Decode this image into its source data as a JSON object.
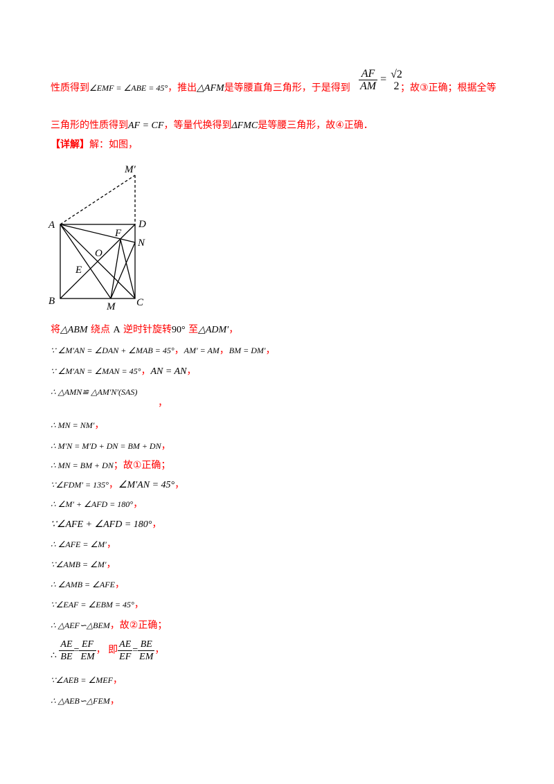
{
  "intro": {
    "line1": {
      "t1": "性质得到",
      "m1": "∠EMF = ∠ABE = 45°",
      "t2": "，推出",
      "m2": "△AFM",
      "t3": "是等腰直角三角形，于是得到",
      "frac_num": "AF",
      "frac_den": "AM",
      "eq": "=",
      "frac2_num": "√2",
      "frac2_den": "2",
      "t4": "；故③正确；根据全等"
    },
    "line2": {
      "t1": "三角形的性质得到",
      "m1": "AF = CF",
      "t2": "，等量代换得到",
      "m2": "ΔFMC",
      "t3": "是等腰三角形，故④正确．"
    }
  },
  "detail_heading": {
    "bracket": "【详解】",
    "text": "解：如图，"
  },
  "diagram": {
    "labels": {
      "A": "A",
      "B": "B",
      "C": "C",
      "D": "D",
      "M": "M",
      "N": "N",
      "F": "F",
      "O": "O",
      "E": "E",
      "Mp": "M′"
    }
  },
  "steps": [
    {
      "parts": [
        {
          "t": "将",
          "c": "red"
        },
        {
          "t": "△ABM",
          "c": "m"
        },
        {
          "t": " 绕点 ",
          "c": "red"
        },
        {
          "t": "A",
          "c": "mu"
        },
        {
          "t": " 逆时针旋转",
          "c": "red"
        },
        {
          "t": "90°",
          "c": "mu"
        },
        {
          "t": " 至",
          "c": "red"
        },
        {
          "t": "△ADM′",
          "c": "m"
        },
        {
          "t": "，",
          "c": "red"
        }
      ]
    },
    {
      "parts": [
        {
          "t": "∵ ∠M′AN = ∠DAN + ∠MAB = 45°",
          "c": "m small"
        },
        {
          "t": "，",
          "c": "red"
        },
        {
          "t": "AM′ = AM",
          "c": "m small"
        },
        {
          "t": "，",
          "c": "red"
        },
        {
          "t": "BM = DM′",
          "c": "m small"
        },
        {
          "t": "，",
          "c": "red"
        }
      ]
    },
    {
      "parts": [
        {
          "t": "∵ ∠M′AN = ∠MAN = 45°",
          "c": "m small"
        },
        {
          "t": "，",
          "c": "red"
        },
        {
          "t": "AN = AN",
          "c": "m"
        },
        {
          "t": "，",
          "c": "red"
        }
      ]
    },
    {
      "parts": [
        {
          "t": "∴ △AMN≌ △AM′N′(SAS)",
          "c": "m small"
        }
      ],
      "trail": "，"
    },
    {
      "parts": [
        {
          "t": "∴ MN = NM′",
          "c": "m small"
        },
        {
          "t": "，",
          "c": "red"
        }
      ]
    },
    {
      "parts": [
        {
          "t": "∴ M′N = M′D + DN = BM + DN",
          "c": "m small"
        },
        {
          "t": "，",
          "c": "red"
        }
      ]
    },
    {
      "parts": [
        {
          "t": "∴ MN = BM + DN",
          "c": "m small"
        },
        {
          "t": "；故①正确；",
          "c": "red"
        }
      ]
    },
    {
      "parts": [
        {
          "t": "∵∠FDM′ = 135°",
          "c": "m small"
        },
        {
          "t": "，",
          "c": "red"
        },
        {
          "t": "∠M′AN = 45°",
          "c": "m"
        },
        {
          "t": "，",
          "c": "red"
        }
      ]
    },
    {
      "parts": [
        {
          "t": "∴ ∠M′ + ∠AFD = 180°",
          "c": "m small"
        },
        {
          "t": "，",
          "c": "red"
        }
      ]
    },
    {
      "parts": [
        {
          "t": "∵∠AFE + ∠AFD = 180°",
          "c": "m"
        },
        {
          "t": "，",
          "c": "red"
        }
      ]
    },
    {
      "parts": [
        {
          "t": "∴ ∠AFE = ∠M′",
          "c": "m small"
        },
        {
          "t": "，",
          "c": "red"
        }
      ]
    },
    {
      "parts": [
        {
          "t": "∵∠AMB = ∠M′",
          "c": "m small"
        },
        {
          "t": "，",
          "c": "red"
        }
      ]
    },
    {
      "parts": [
        {
          "t": "∴ ∠AMB = ∠AFE",
          "c": "m small"
        },
        {
          "t": "，",
          "c": "red"
        }
      ]
    },
    {
      "parts": [
        {
          "t": "∵∠EAF = ∠EBM = 45°",
          "c": "m small"
        },
        {
          "t": "，",
          "c": "red"
        }
      ]
    },
    {
      "parts": [
        {
          "t": "∴ △AEF∽△BEM",
          "c": "m small"
        },
        {
          "t": "，故②正确；",
          "c": "red"
        }
      ]
    }
  ],
  "fraction_step": {
    "therefore": "∴",
    "f1_num": "AE",
    "f1_den": "BE",
    "eq1": "=",
    "f2_num": "EF",
    "f2_den": "EM",
    "comma1": "，",
    "ji": "即",
    "f3_num": "AE",
    "f3_den": "EF",
    "eq2": "=",
    "f4_num": "BE",
    "f4_den": "EM",
    "comma2": "，"
  },
  "final_steps": [
    {
      "parts": [
        {
          "t": "∵∠AEB = ∠MEF",
          "c": "m small"
        },
        {
          "t": "，",
          "c": "red"
        }
      ]
    },
    {
      "parts": [
        {
          "t": "∴ △AEB∽△FEM",
          "c": "m small"
        },
        {
          "t": "，",
          "c": "red"
        }
      ]
    }
  ],
  "colors": {
    "accent_red": "#ff0000",
    "text": "#000000"
  }
}
